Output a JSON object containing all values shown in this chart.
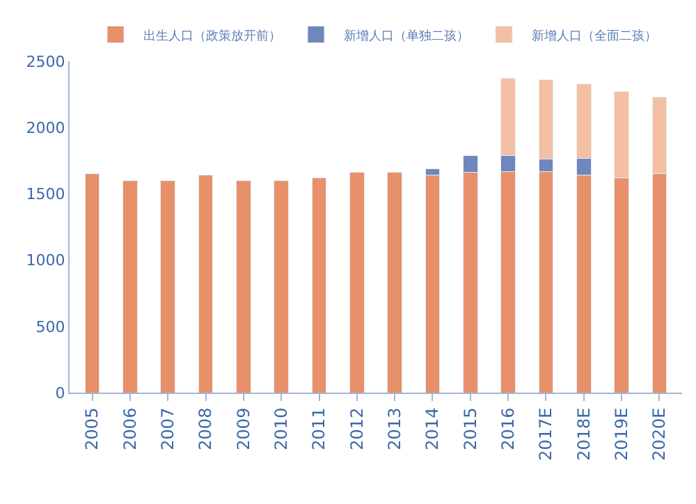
{
  "chart_data": {
    "type": "bar",
    "stacked": true,
    "categories": [
      "2005",
      "2006",
      "2007",
      "2008",
      "2009",
      "2010",
      "2011",
      "2012",
      "2013",
      "2014",
      "2015",
      "2016",
      "2017E",
      "2018E",
      "2019E",
      "2020E"
    ],
    "series": [
      {
        "name": "出生人口（政策放开前）",
        "color": "#e8906a",
        "values": [
          1650,
          1600,
          1600,
          1640,
          1600,
          1600,
          1620,
          1660,
          1660,
          1640,
          1660,
          1670,
          1670,
          1640,
          1620,
          1650
        ]
      },
      {
        "name": "新增人口（单独二孩）",
        "color": "#6f87bd",
        "values": [
          null,
          null,
          null,
          null,
          null,
          null,
          null,
          null,
          null,
          50,
          130,
          120,
          90,
          130,
          null,
          null
        ]
      },
      {
        "name": "新增人口（全面二孩）",
        "color": "#f4bfa3",
        "values": [
          null,
          null,
          null,
          null,
          null,
          null,
          null,
          null,
          null,
          null,
          null,
          580,
          600,
          560,
          650,
          580
        ]
      }
    ],
    "ylim": [
      0,
      2500
    ],
    "yticks": [
      0,
      500,
      1000,
      1500,
      2000,
      2500
    ],
    "legend": "top"
  }
}
